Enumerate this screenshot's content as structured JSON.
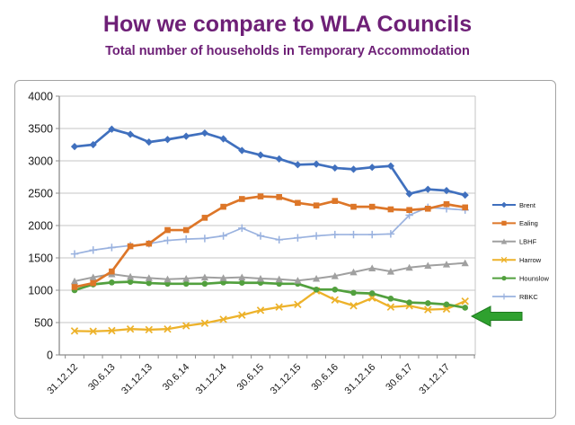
{
  "slide": {
    "title": "How we compare to WLA Councils",
    "subtitle": "Total number of households in Temporary Accommodation"
  },
  "colors": {
    "title_text": "#6E2077",
    "frame_border": "#A3A3A3",
    "gridline": "#C6C6C6",
    "axis": "#8C8C8C",
    "tick_label": "#1A1A1A",
    "legend_text": "#111111",
    "arrow_fill": "#2FA12F",
    "arrow_edge": "#1D7A1D"
  },
  "chart_data": {
    "type": "line",
    "title": "",
    "xlabel": "",
    "ylabel": "",
    "grid": true,
    "legend_position": "right",
    "ylim": [
      0,
      4000
    ],
    "y_tick_step": 500,
    "y_tick_labels": [
      "0",
      "500",
      "1000",
      "1500",
      "2000",
      "2500",
      "3000",
      "3500",
      "4000"
    ],
    "n_points": 22,
    "points_per_label": 2,
    "x_tick_labels": [
      "31.12.12",
      "30.6.13",
      "31.12.13",
      "30.6.14",
      "31.12.14",
      "30.6.15",
      "31.12.15",
      "30.6.16",
      "31.12.16",
      "30.6.17",
      "31.12.17"
    ],
    "series": [
      {
        "name": "Brent",
        "color": "#4070BE",
        "marker": "diamond",
        "values": [
          3220,
          3250,
          3490,
          3410,
          3290,
          3330,
          3380,
          3430,
          3340,
          3160,
          3090,
          3030,
          2940,
          2950,
          2890,
          2870,
          2900,
          2920,
          2490,
          2560,
          2540,
          2470
        ]
      },
      {
        "name": "Ealing",
        "color": "#DD7628",
        "marker": "square",
        "values": [
          1050,
          1110,
          1290,
          1680,
          1720,
          1930,
          1930,
          2120,
          2290,
          2410,
          2450,
          2440,
          2350,
          2310,
          2380,
          2290,
          2290,
          2250,
          2240,
          2260,
          2330,
          2280
        ]
      },
      {
        "name": "LBHF",
        "color": "#A0A0A0",
        "marker": "triangle",
        "values": [
          1140,
          1200,
          1250,
          1210,
          1190,
          1170,
          1180,
          1200,
          1190,
          1200,
          1180,
          1170,
          1150,
          1180,
          1220,
          1280,
          1340,
          1290,
          1350,
          1380,
          1400,
          1420
        ]
      },
      {
        "name": "Harrow",
        "color": "#EDB22A",
        "marker": "x",
        "values": [
          370,
          365,
          375,
          400,
          390,
          400,
          450,
          490,
          550,
          615,
          690,
          740,
          780,
          990,
          850,
          760,
          880,
          740,
          760,
          700,
          710,
          830
        ]
      },
      {
        "name": "Hounslow",
        "color": "#52A03E",
        "marker": "circle",
        "values": [
          1000,
          1090,
          1120,
          1130,
          1110,
          1100,
          1100,
          1100,
          1120,
          1115,
          1115,
          1100,
          1100,
          1010,
          1010,
          960,
          950,
          870,
          810,
          800,
          780,
          730
        ]
      },
      {
        "name": "RBKC",
        "color": "#9AB2DF",
        "marker": "plus",
        "values": [
          1560,
          1620,
          1660,
          1690,
          1720,
          1770,
          1790,
          1800,
          1840,
          1960,
          1840,
          1780,
          1810,
          1840,
          1860,
          1860,
          1860,
          1870,
          2160,
          2280,
          2260,
          2240
        ]
      }
    ],
    "annotation": {
      "type": "left-arrow",
      "color": "#2FA12F"
    }
  }
}
